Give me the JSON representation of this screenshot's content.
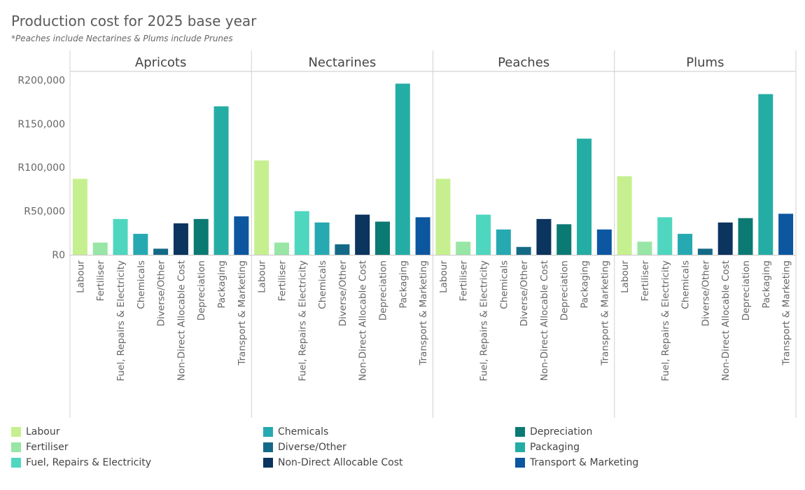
{
  "chart_data": {
    "type": "bar",
    "title": "Production cost for 2025 base year",
    "subtitle": "*Peaches include Nectarines & Plums include Prunes",
    "panels": [
      "Apricots",
      "Nectarines",
      "Peaches",
      "Plums"
    ],
    "categories": [
      "Labour",
      "Fertiliser",
      "Fuel, Repairs & Electricity",
      "Chemicals",
      "Diverse/Other",
      "Non-Direct Allocable Cost",
      "Depreciation",
      "Packaging",
      "Transport & Marketing"
    ],
    "colors": [
      "#c6f08f",
      "#97e6a5",
      "#4fd6bf",
      "#26a9b1",
      "#146a86",
      "#0b345e",
      "#0b7a73",
      "#24ada5",
      "#0d56a0"
    ],
    "series": [
      {
        "name": "Apricots",
        "values": [
          87000,
          14000,
          41000,
          24000,
          7000,
          36000,
          41000,
          170000,
          44000
        ]
      },
      {
        "name": "Nectarines",
        "values": [
          108000,
          14000,
          50000,
          37000,
          12000,
          46000,
          38000,
          196000,
          43000
        ]
      },
      {
        "name": "Peaches",
        "values": [
          87000,
          15000,
          46000,
          29000,
          9000,
          41000,
          35000,
          133000,
          29000
        ]
      },
      {
        "name": "Plums",
        "values": [
          90000,
          15000,
          43000,
          24000,
          7000,
          37000,
          42000,
          184000,
          47000
        ]
      }
    ],
    "yticks": [
      0,
      50000,
      100000,
      150000,
      200000
    ],
    "ytick_labels": [
      "R0",
      "R50,000",
      "R100,000",
      "R150,000",
      "R200,000"
    ],
    "ylim": [
      0,
      210000
    ],
    "ylabel": "",
    "xlabel": "",
    "grid": false,
    "legend_position": "bottom"
  }
}
